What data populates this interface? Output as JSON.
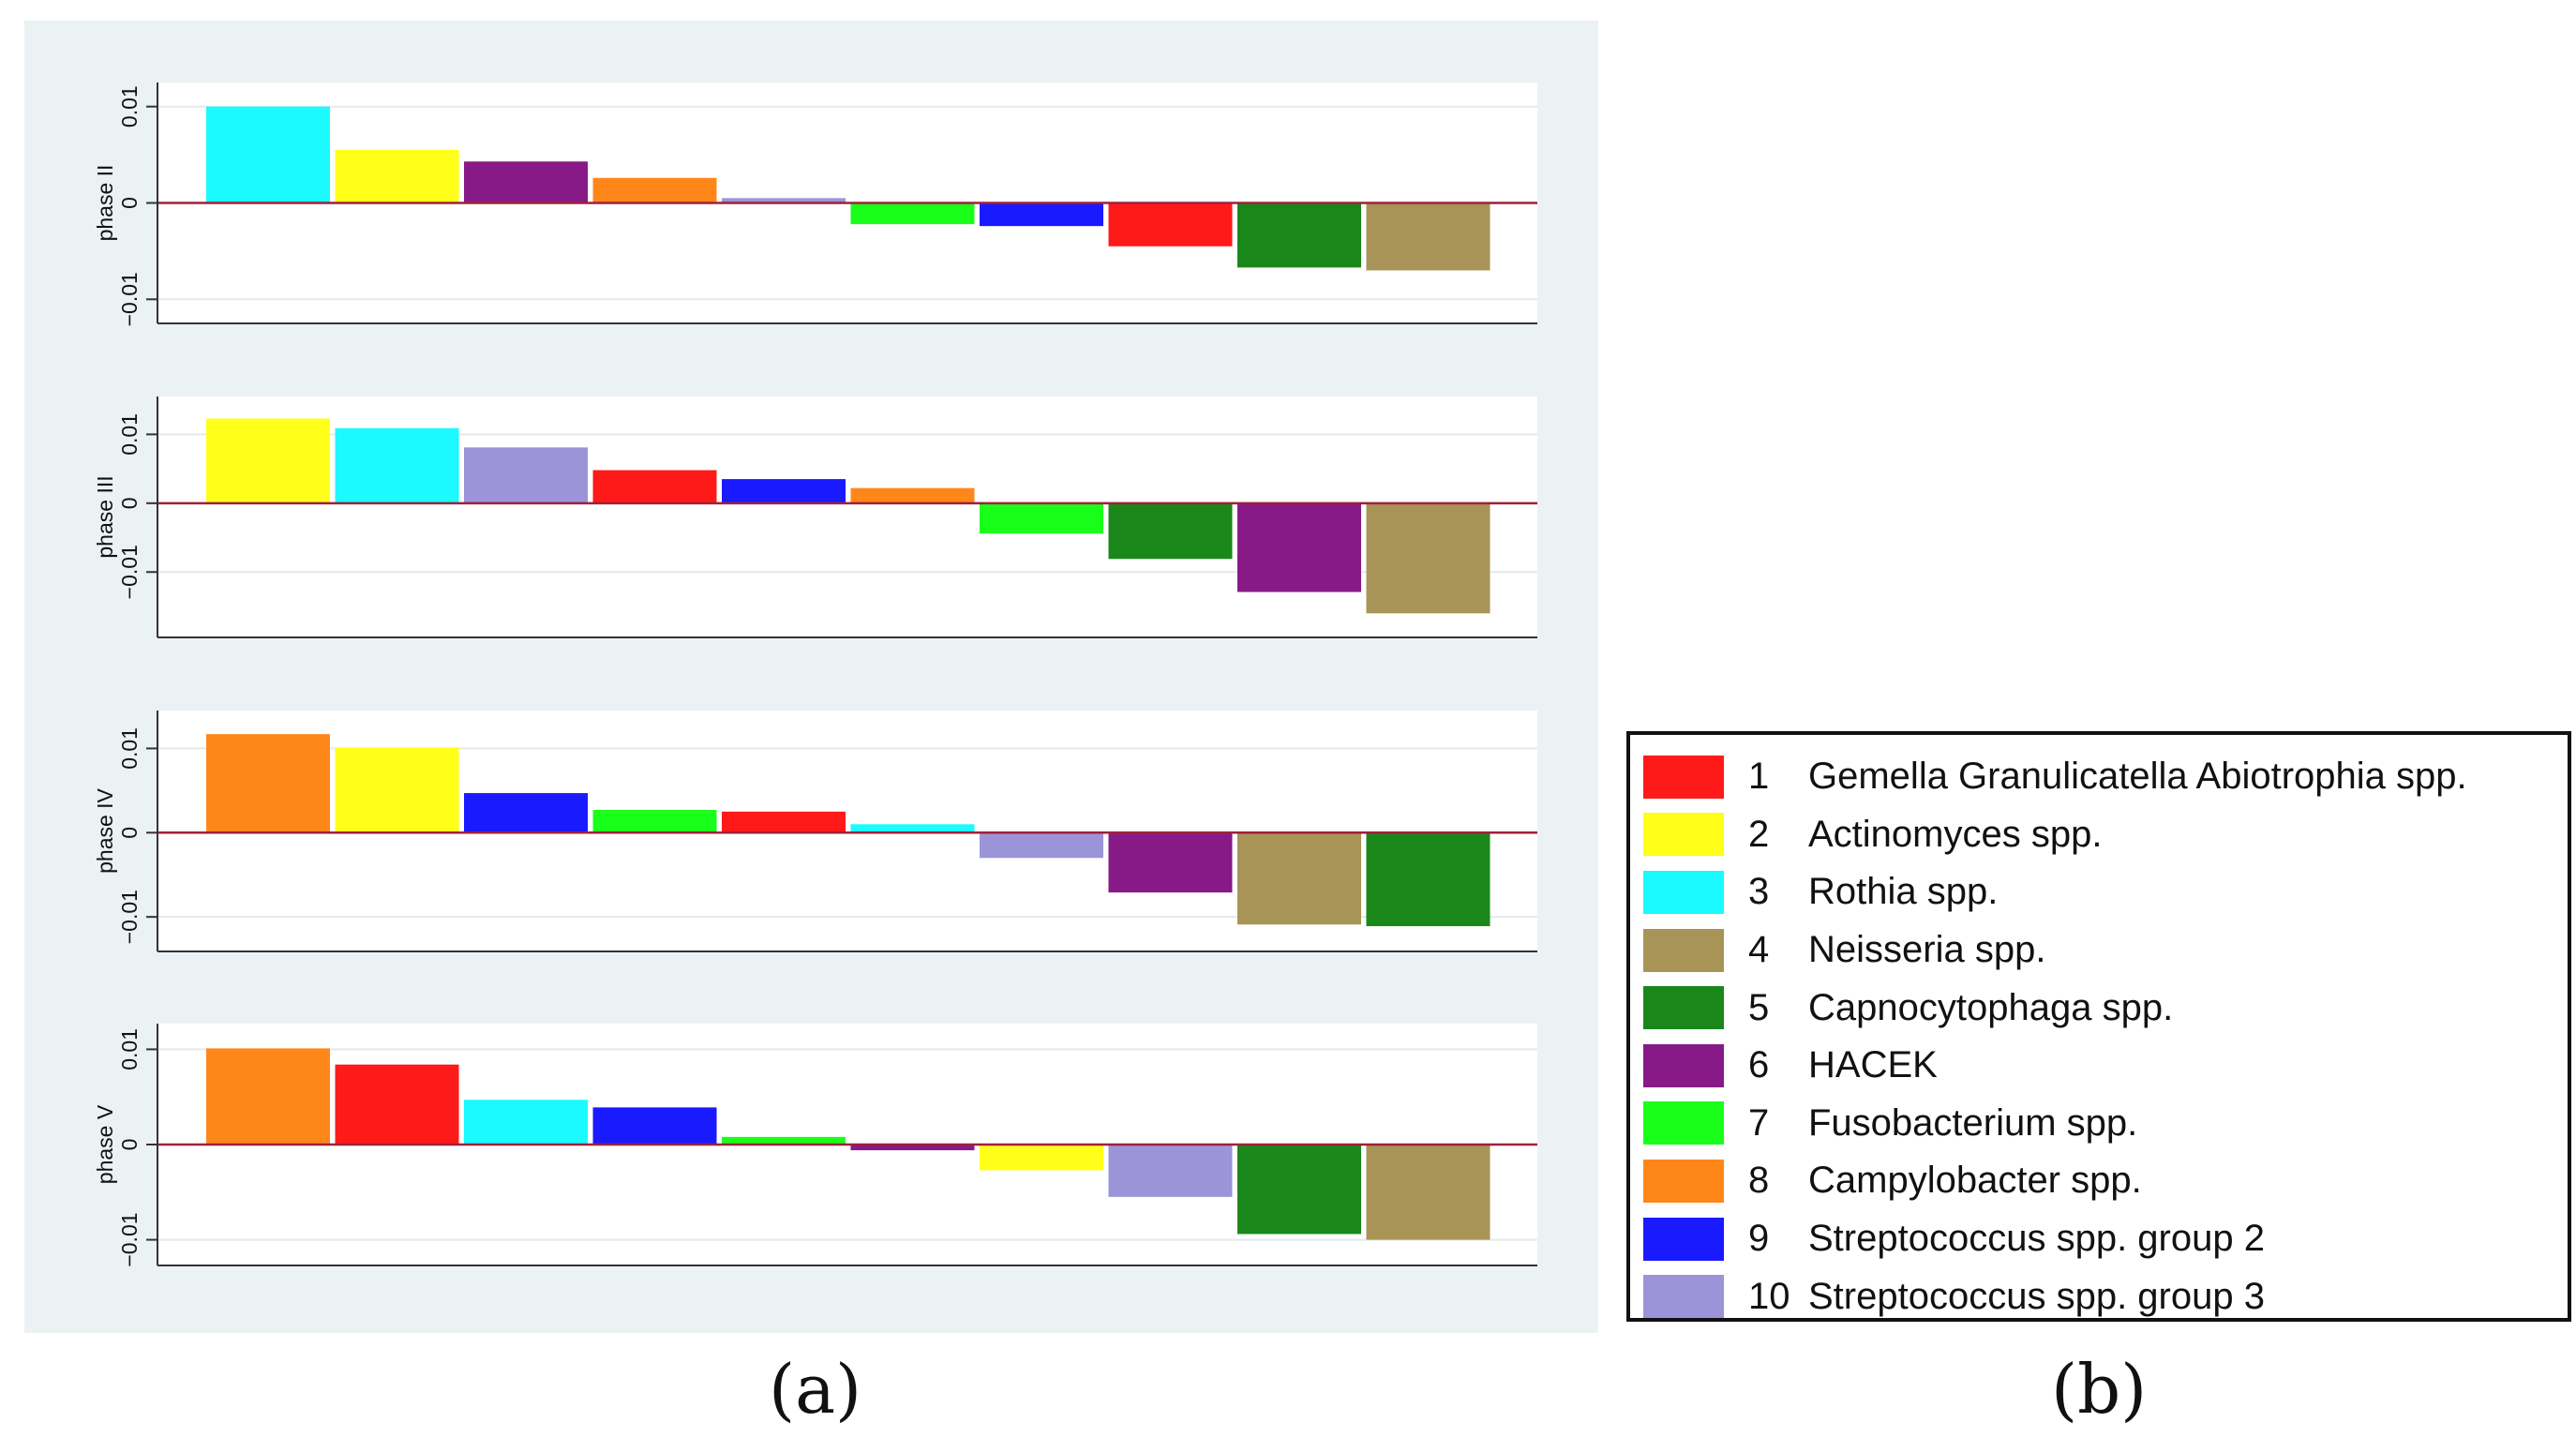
{
  "figure": {
    "caption_a": "(a)",
    "caption_b": "(b)"
  },
  "chart_data": [
    {
      "type": "bar",
      "ylabel": "phase II",
      "ylim": [
        -0.0125,
        0.0125
      ],
      "yticks": [
        -0.01,
        0,
        0.01
      ],
      "ytick_labels": [
        "−0.01",
        "0",
        "0.01"
      ],
      "grid": true,
      "categories": [
        "3",
        "2",
        "6",
        "8",
        "10",
        "7",
        "9",
        "1",
        "5",
        "4"
      ],
      "values": [
        0.01,
        0.0055,
        0.0043,
        0.0026,
        0.0005,
        -0.0022,
        -0.0024,
        -0.0045,
        -0.0067,
        -0.007
      ]
    },
    {
      "type": "bar",
      "ylabel": "phase III",
      "ylim": [
        -0.0195,
        0.0155
      ],
      "yticks": [
        -0.01,
        0,
        0.01
      ],
      "ytick_labels": [
        "−0.01",
        "0",
        "0.01"
      ],
      "grid": true,
      "categories": [
        "2",
        "3",
        "10",
        "1",
        "9",
        "8",
        "7",
        "5",
        "6",
        "4"
      ],
      "values": [
        0.0123,
        0.0109,
        0.0081,
        0.0048,
        0.0035,
        0.0022,
        -0.0044,
        -0.0081,
        -0.0129,
        -0.016
      ]
    },
    {
      "type": "bar",
      "ylabel": "phase IV",
      "ylim": [
        -0.0141,
        0.0145
      ],
      "yticks": [
        -0.01,
        0,
        0.01
      ],
      "ytick_labels": [
        "−0.01",
        "0",
        "0.01"
      ],
      "grid": true,
      "categories": [
        "8",
        "2",
        "9",
        "7",
        "1",
        "3",
        "10",
        "6",
        "4",
        "5"
      ],
      "values": [
        0.0117,
        0.0101,
        0.0047,
        0.0027,
        0.0025,
        0.001,
        -0.003,
        -0.0071,
        -0.0109,
        -0.0111
      ]
    },
    {
      "type": "bar",
      "ylabel": "phase V",
      "ylim": [
        -0.0127,
        0.0127
      ],
      "yticks": [
        -0.01,
        0,
        0.01
      ],
      "ytick_labels": [
        "−0.01",
        "0",
        "0.01"
      ],
      "grid": true,
      "categories": [
        "8",
        "1",
        "3",
        "9",
        "7",
        "6",
        "2",
        "10",
        "5",
        "4"
      ],
      "values": [
        0.0101,
        0.0084,
        0.0047,
        0.0039,
        0.0008,
        -0.0006,
        -0.0027,
        -0.0055,
        -0.0094,
        -0.01
      ]
    }
  ],
  "legend": {
    "items": [
      {
        "id": "1",
        "label": "Gemella Granulicatella Abiotrophia spp.",
        "color": "#ff1a1a"
      },
      {
        "id": "2",
        "label": "Actinomyces spp.",
        "color": "#ffff1a"
      },
      {
        "id": "3",
        "label": "Rothia spp.",
        "color": "#1afaff"
      },
      {
        "id": "4",
        "label": "Neisseria spp.",
        "color": "#a89456"
      },
      {
        "id": "5",
        "label": "Capnocytophaga spp.",
        "color": "#1a871a"
      },
      {
        "id": "6",
        "label": "HACEK",
        "color": "#871a87"
      },
      {
        "id": "7",
        "label": "Fusobacterium spp.",
        "color": "#1aff1a"
      },
      {
        "id": "8",
        "label": "Campylobacter spp.",
        "color": "#ff871a"
      },
      {
        "id": "9",
        "label": "Streptococcus spp. group 2",
        "color": "#1a1aff"
      },
      {
        "id": "10",
        "label": "Streptococcus spp. group 3",
        "color": "#9b94d8"
      }
    ]
  }
}
